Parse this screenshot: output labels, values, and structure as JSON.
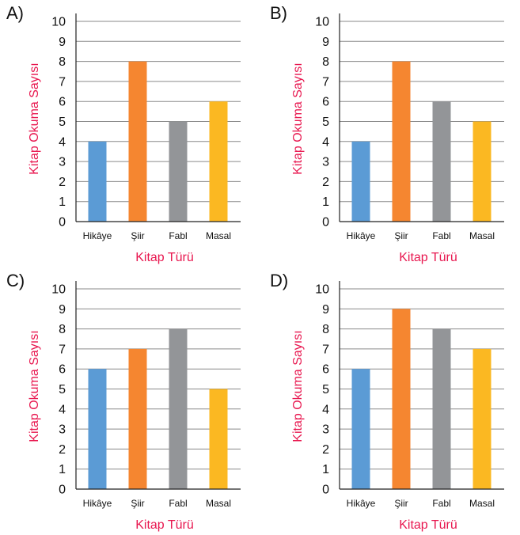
{
  "chart_data": [
    {
      "type": "bar",
      "label": "A)",
      "categories": [
        "Hikâye",
        "Şiir",
        "Fabl",
        "Masal"
      ],
      "values": [
        4,
        8,
        5,
        6
      ],
      "xlabel": "Kitap Türü",
      "ylabel": "Kitap Okuma Sayısı",
      "ylim": [
        0,
        10
      ],
      "yticks": [
        0,
        1,
        2,
        3,
        4,
        5,
        6,
        7,
        8,
        9,
        10
      ],
      "grid": true
    },
    {
      "type": "bar",
      "label": "B)",
      "categories": [
        "Hikâye",
        "Şiir",
        "Fabl",
        "Masal"
      ],
      "values": [
        4,
        8,
        6,
        5
      ],
      "xlabel": "Kitap Türü",
      "ylabel": "Kitap Okuma Sayısı",
      "ylim": [
        0,
        10
      ],
      "yticks": [
        0,
        1,
        2,
        3,
        4,
        5,
        6,
        7,
        8,
        9,
        10
      ],
      "grid": true
    },
    {
      "type": "bar",
      "label": "C)",
      "categories": [
        "Hikâye",
        "Şiir",
        "Fabl",
        "Masal"
      ],
      "values": [
        6,
        7,
        8,
        5
      ],
      "xlabel": "Kitap Türü",
      "ylabel": "Kitap Okuma Sayısı",
      "ylim": [
        0,
        10
      ],
      "yticks": [
        0,
        1,
        2,
        3,
        4,
        5,
        6,
        7,
        8,
        9,
        10
      ],
      "grid": true
    },
    {
      "type": "bar",
      "label": "D)",
      "categories": [
        "Hikâye",
        "Şiir",
        "Fabl",
        "Masal"
      ],
      "values": [
        6,
        9,
        8,
        7
      ],
      "xlabel": "Kitap Türü",
      "ylabel": "Kitap Okuma Sayısı",
      "ylim": [
        0,
        10
      ],
      "yticks": [
        0,
        1,
        2,
        3,
        4,
        5,
        6,
        7,
        8,
        9,
        10
      ],
      "grid": true
    }
  ],
  "colors": {
    "Hikâye": "#5b9bd5",
    "Şiir": "#f58630",
    "Fabl": "#939598",
    "Masal": "#fbb822",
    "axis_title": "#e8174f"
  }
}
